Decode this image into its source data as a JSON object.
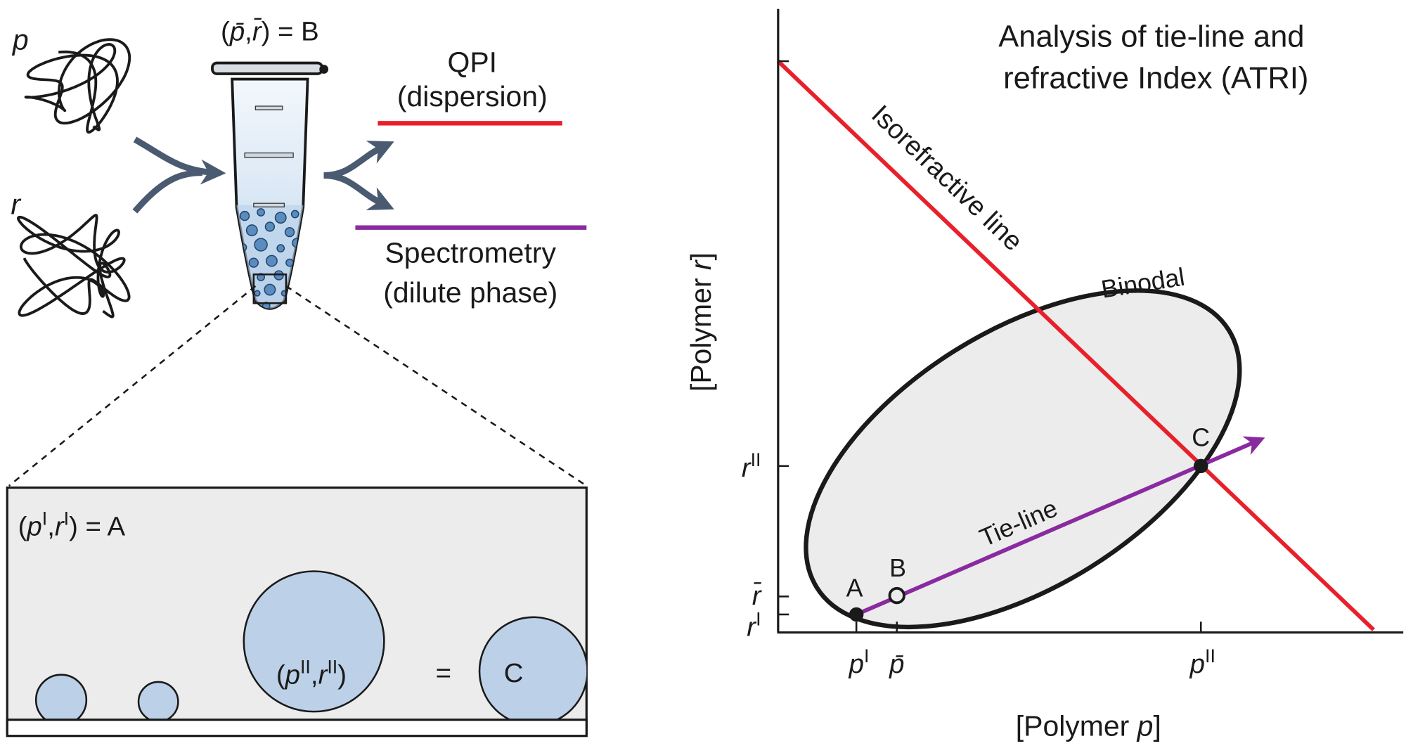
{
  "left_panel": {
    "polymer_p": "p",
    "polymer_r": "r",
    "mixture_label": [
      "(",
      "p̄",
      ",",
      "r̄",
      ") = B"
    ],
    "qpi": [
      "QPI",
      "(dispersion)"
    ],
    "spectrometry": [
      "Spectrometry",
      "(dilute phase)"
    ],
    "dilute_label": [
      "(",
      "p",
      "I",
      ",",
      "r",
      "I",
      ") = A"
    ],
    "dense_label": [
      "(",
      "p",
      "II",
      ",",
      "r",
      "II",
      ")"
    ],
    "equals": "=",
    "dense_point": "C"
  },
  "right_panel": {
    "title": [
      "Analysis of tie-line and",
      "refractive Index (ATRI)"
    ],
    "isorefractive": "Isorefractive line",
    "binodal": "Binodal",
    "tie_line": "Tie-line",
    "points": [
      "A",
      "B",
      "C"
    ],
    "y_axis": [
      "[Polymer ",
      "r",
      "]"
    ],
    "x_axis": [
      "[Polymer ",
      "p",
      "]"
    ],
    "y_ticks": [
      [
        "r",
        "II"
      ],
      [
        "r̄"
      ],
      [
        "r",
        "I"
      ]
    ],
    "x_ticks": [
      [
        "p",
        "I"
      ],
      [
        "p̄"
      ],
      [
        "p",
        "II"
      ]
    ]
  }
}
